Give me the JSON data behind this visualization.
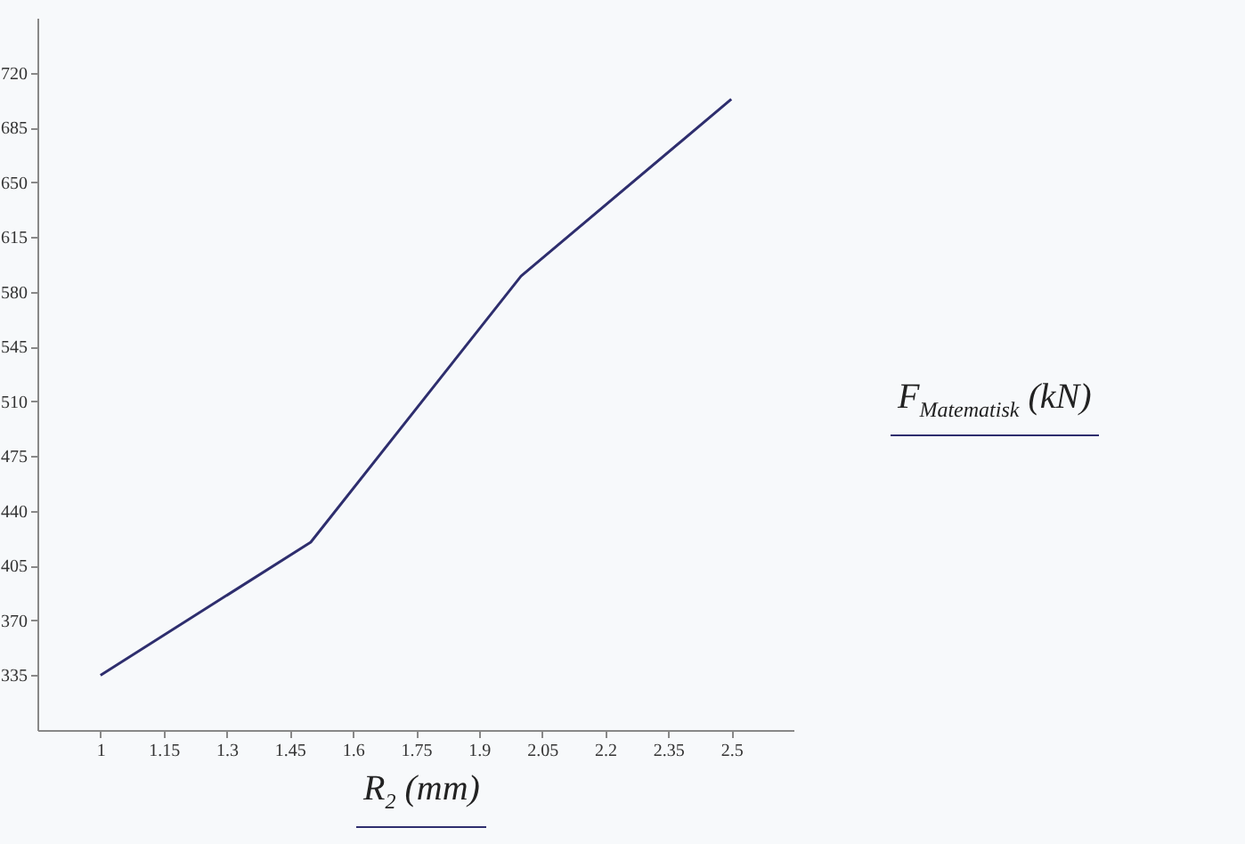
{
  "chart_data": {
    "type": "line",
    "xlabel": "R$_{2}$ (mm)",
    "ylabel": "F$_{Matematisk}$ (kN)",
    "x": [
      1,
      1.5,
      2,
      2.5
    ],
    "series": [
      {
        "color": "#2e2e6e",
        "values": [
          335,
          420,
          590,
          703
        ]
      }
    ],
    "xlim": [
      0.85,
      2.65
    ],
    "xticks": [
      1,
      1.15,
      1.3,
      1.45,
      1.6,
      1.75,
      1.9,
      2.05,
      2.2,
      2.35,
      2.5
    ],
    "ylim": [
      300,
      755
    ],
    "yticks": [
      335,
      370,
      405,
      440,
      475,
      510,
      545,
      580,
      615,
      650,
      685,
      720
    ],
    "grid": false,
    "marker": "none",
    "line_style": "solid"
  }
}
